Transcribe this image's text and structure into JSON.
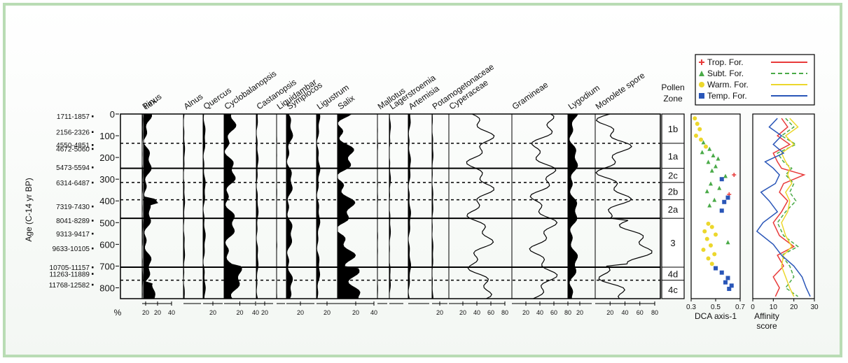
{
  "chart_data": {
    "type": "area",
    "ylabel": "Age (C-14 yr BP)",
    "y_axis": {
      "ylim": [
        0,
        850
      ],
      "ticks": [
        0,
        100,
        200,
        300,
        400,
        500,
        600,
        700,
        800
      ]
    },
    "date_labels": [
      {
        "label": "1711-1857",
        "depth": 10
      },
      {
        "label": "2156-2326",
        "depth": 82
      },
      {
        "label": "4550-4851",
        "depth": 142
      },
      {
        "label": "4672-5060",
        "depth": 160
      },
      {
        "label": "5473-5594",
        "depth": 245
      },
      {
        "label": "6314-6487",
        "depth": 315
      },
      {
        "label": "7319-7430",
        "depth": 425
      },
      {
        "label": "8041-8289",
        "depth": 490
      },
      {
        "label": "9313-9417",
        "depth": 550
      },
      {
        "label": "9633-10105",
        "depth": 618
      },
      {
        "label": "10705-11157",
        "depth": 705
      },
      {
        "label": "11263-11889",
        "depth": 735
      },
      {
        "label": "11768-12582",
        "depth": 785
      }
    ],
    "pollen_taxa": [
      {
        "name": "Pinus",
        "axis_ticks": [
          "20"
        ]
      },
      {
        "name": "Ilex",
        "axis_ticks": [
          "20",
          "40"
        ]
      },
      {
        "name": "Alnus",
        "axis_ticks": []
      },
      {
        "name": "Quercus",
        "axis_ticks": [
          "20"
        ]
      },
      {
        "name": "Cyclobalanopsis",
        "axis_ticks": [
          "20",
          "40"
        ]
      },
      {
        "name": "Castanopsis",
        "axis_ticks": [
          "20"
        ]
      },
      {
        "name": "Liquidambar",
        "axis_ticks": []
      },
      {
        "name": "Symplocos",
        "axis_ticks": [
          "20"
        ]
      },
      {
        "name": "Ligustrum",
        "axis_ticks": [
          "20"
        ]
      },
      {
        "name": "Salix",
        "axis_ticks": [
          "20",
          "40"
        ]
      },
      {
        "name": "Mallotus",
        "axis_ticks": []
      },
      {
        "name": "Lagerstroemia",
        "axis_ticks": []
      },
      {
        "name": "Artemisia",
        "axis_ticks": []
      },
      {
        "name": "Potamogetonaceae",
        "axis_ticks": [
          "20"
        ]
      },
      {
        "name": "Cyperaceae",
        "axis_ticks": [
          "20",
          "40",
          "60",
          "80"
        ]
      },
      {
        "name": "Gramineae",
        "axis_ticks": [
          "20",
          "40",
          "60",
          "80"
        ]
      },
      {
        "name": "Lygodium",
        "axis_ticks": [
          "20"
        ]
      },
      {
        "name": "Monolete spore",
        "axis_ticks": [
          "20",
          "40",
          "60",
          "80"
        ]
      }
    ],
    "pct_label": "%",
    "zones": {
      "title": "Pollen Zone",
      "items": [
        {
          "label": "1b",
          "top": 0,
          "bottom": 135
        },
        {
          "label": "1a",
          "top": 135,
          "bottom": 250
        },
        {
          "label": "2c",
          "top": 250,
          "bottom": 315
        },
        {
          "label": "2b",
          "top": 315,
          "bottom": 395
        },
        {
          "label": "2a",
          "top": 395,
          "bottom": 480
        },
        {
          "label": "3",
          "top": 480,
          "bottom": 705
        },
        {
          "label": "4d",
          "top": 705,
          "bottom": 765
        },
        {
          "label": "4c",
          "top": 765,
          "bottom": 850
        }
      ],
      "solid_boundaries": [
        250,
        480,
        705
      ],
      "dashed_boundaries": [
        135,
        315,
        395,
        765
      ]
    },
    "legend": [
      {
        "label": "Trop. For.",
        "marker": "+",
        "color": "#e83a3a"
      },
      {
        "label": "Subt. For.",
        "marker": "triangle",
        "color": "#4aaa48"
      },
      {
        "label": "Warm. For.",
        "marker": "circle",
        "color": "#ecd72c"
      },
      {
        "label": "Temp. For.",
        "marker": "square",
        "color": "#2a56b8"
      }
    ],
    "dca": {
      "xlabel": "DCA axis-1",
      "xlim": [
        0.3,
        0.7
      ],
      "ticks": [
        "0.3",
        "0.5",
        "0.7"
      ],
      "points": [
        {
          "g": "warm",
          "x": 0.33,
          "y": 20
        },
        {
          "g": "warm",
          "x": 0.35,
          "y": 45
        },
        {
          "g": "warm",
          "x": 0.37,
          "y": 70
        },
        {
          "g": "warm",
          "x": 0.34,
          "y": 100
        },
        {
          "g": "warm",
          "x": 0.38,
          "y": 118
        },
        {
          "g": "subt",
          "x": 0.4,
          "y": 130
        },
        {
          "g": "warm",
          "x": 0.42,
          "y": 150
        },
        {
          "g": "subt",
          "x": 0.45,
          "y": 160
        },
        {
          "g": "subt",
          "x": 0.39,
          "y": 175
        },
        {
          "g": "subt",
          "x": 0.48,
          "y": 190
        },
        {
          "g": "subt",
          "x": 0.52,
          "y": 205
        },
        {
          "g": "subt",
          "x": 0.44,
          "y": 220
        },
        {
          "g": "subt",
          "x": 0.5,
          "y": 240
        },
        {
          "g": "subt",
          "x": 0.47,
          "y": 260
        },
        {
          "g": "trop",
          "x": 0.65,
          "y": 280
        },
        {
          "g": "subt",
          "x": 0.58,
          "y": 285
        },
        {
          "g": "temp",
          "x": 0.55,
          "y": 300
        },
        {
          "g": "subt",
          "x": 0.46,
          "y": 320
        },
        {
          "g": "subt",
          "x": 0.53,
          "y": 340
        },
        {
          "g": "subt",
          "x": 0.43,
          "y": 355
        },
        {
          "g": "trop",
          "x": 0.61,
          "y": 370
        },
        {
          "g": "temp",
          "x": 0.6,
          "y": 385
        },
        {
          "g": "subt",
          "x": 0.49,
          "y": 395
        },
        {
          "g": "temp",
          "x": 0.57,
          "y": 405
        },
        {
          "g": "subt",
          "x": 0.45,
          "y": 420
        },
        {
          "g": "temp",
          "x": 0.55,
          "y": 445
        },
        {
          "g": "warm",
          "x": 0.44,
          "y": 505
        },
        {
          "g": "warm",
          "x": 0.47,
          "y": 520
        },
        {
          "g": "warm",
          "x": 0.41,
          "y": 540
        },
        {
          "g": "warm",
          "x": 0.5,
          "y": 555
        },
        {
          "g": "warm",
          "x": 0.43,
          "y": 575
        },
        {
          "g": "subt",
          "x": 0.6,
          "y": 590
        },
        {
          "g": "warm",
          "x": 0.46,
          "y": 605
        },
        {
          "g": "warm",
          "x": 0.4,
          "y": 625
        },
        {
          "g": "warm",
          "x": 0.49,
          "y": 645
        },
        {
          "g": "warm",
          "x": 0.44,
          "y": 665
        },
        {
          "g": "warm",
          "x": 0.47,
          "y": 690
        },
        {
          "g": "temp",
          "x": 0.5,
          "y": 710
        },
        {
          "g": "temp",
          "x": 0.55,
          "y": 730
        },
        {
          "g": "temp",
          "x": 0.6,
          "y": 755
        },
        {
          "g": "temp",
          "x": 0.58,
          "y": 775
        },
        {
          "g": "temp",
          "x": 0.63,
          "y": 790
        },
        {
          "g": "temp",
          "x": 0.61,
          "y": 805
        }
      ]
    },
    "affinity": {
      "xlabel": "Affinity score",
      "xlim": [
        0,
        30
      ],
      "ticks": [
        "0",
        "10",
        "20",
        "30"
      ],
      "series": [
        {
          "g": "trop",
          "points": [
            [
              14,
              20
            ],
            [
              17,
              60
            ],
            [
              12,
              100
            ],
            [
              18,
              140
            ],
            [
              10,
              180
            ],
            [
              12,
              220
            ],
            [
              14,
              250
            ],
            [
              25,
              280
            ],
            [
              15,
              320
            ],
            [
              13,
              360
            ],
            [
              17,
              400
            ],
            [
              14,
              450
            ],
            [
              10,
              500
            ],
            [
              13,
              560
            ],
            [
              20,
              610
            ],
            [
              12,
              650
            ],
            [
              15,
              700
            ],
            [
              10,
              750
            ],
            [
              13,
              800
            ],
            [
              11,
              840
            ]
          ]
        },
        {
          "g": "subt",
          "points": [
            [
              16,
              20
            ],
            [
              20,
              60
            ],
            [
              14,
              100
            ],
            [
              21,
              140
            ],
            [
              12,
              180
            ],
            [
              15,
              220
            ],
            [
              19,
              250
            ],
            [
              16,
              280
            ],
            [
              20,
              320
            ],
            [
              18,
              360
            ],
            [
              21,
              400
            ],
            [
              16,
              450
            ],
            [
              12,
              500
            ],
            [
              15,
              560
            ],
            [
              22,
              610
            ],
            [
              14,
              650
            ],
            [
              18,
              700
            ],
            [
              20,
              750
            ],
            [
              16,
              800
            ],
            [
              22,
              840
            ]
          ]
        },
        {
          "g": "warm",
          "points": [
            [
              18,
              20
            ],
            [
              22,
              60
            ],
            [
              16,
              100
            ],
            [
              20,
              140
            ],
            [
              14,
              180
            ],
            [
              16,
              220
            ],
            [
              18,
              250
            ],
            [
              17,
              280
            ],
            [
              19,
              320
            ],
            [
              16,
              360
            ],
            [
              18,
              400
            ],
            [
              17,
              450
            ],
            [
              14,
              500
            ],
            [
              16,
              560
            ],
            [
              19,
              610
            ],
            [
              15,
              650
            ],
            [
              14,
              700
            ],
            [
              16,
              750
            ],
            [
              18,
              800
            ],
            [
              20,
              840
            ]
          ]
        },
        {
          "g": "temp",
          "points": [
            [
              12,
              20
            ],
            [
              8,
              60
            ],
            [
              14,
              100
            ],
            [
              10,
              140
            ],
            [
              15,
              180
            ],
            [
              6,
              220
            ],
            [
              10,
              250
            ],
            [
              13,
              280
            ],
            [
              11,
              320
            ],
            [
              4,
              360
            ],
            [
              8,
              400
            ],
            [
              12,
              450
            ],
            [
              5,
              500
            ],
            [
              2,
              540
            ],
            [
              10,
              600
            ],
            [
              14,
              650
            ],
            [
              20,
              700
            ],
            [
              24,
              750
            ],
            [
              26,
              800
            ],
            [
              28,
              840
            ]
          ]
        }
      ]
    }
  }
}
